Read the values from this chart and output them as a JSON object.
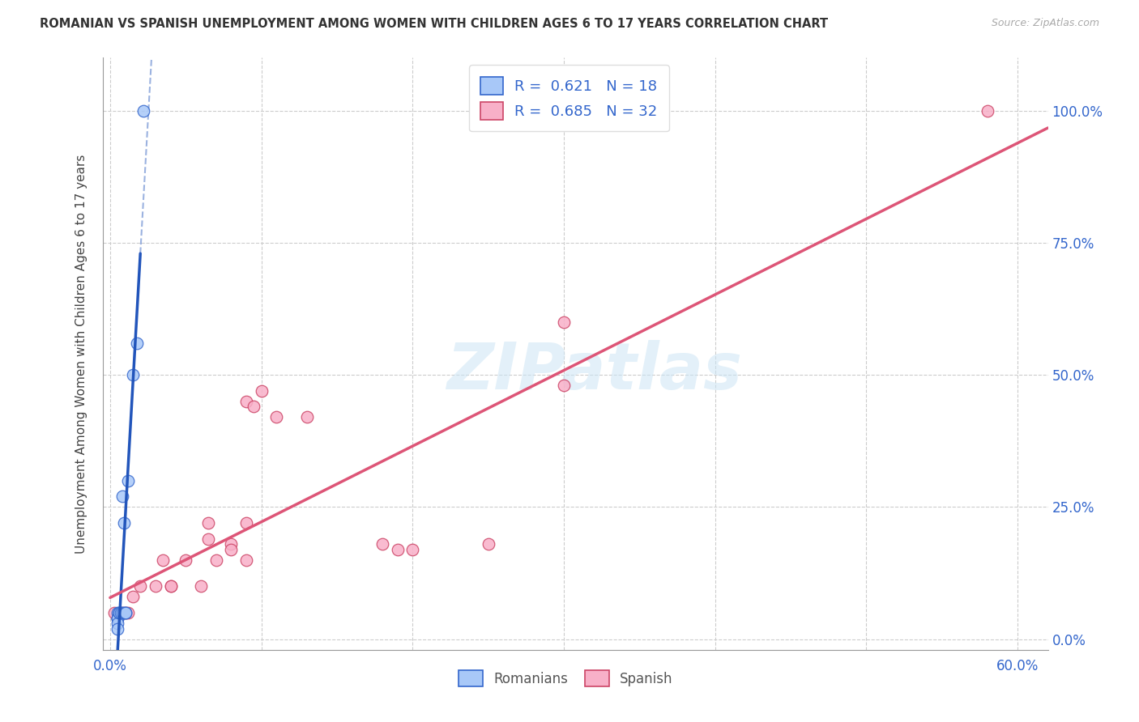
{
  "title": "ROMANIAN VS SPANISH UNEMPLOYMENT AMONG WOMEN WITH CHILDREN AGES 6 TO 17 YEARS CORRELATION CHART",
  "source": "Source: ZipAtlas.com",
  "ylabel_label": "Unemployment Among Women with Children Ages 6 to 17 years",
  "xlim": [
    -0.005,
    0.62
  ],
  "ylim": [
    -0.02,
    1.1
  ],
  "x_tick_vals": [
    0.0,
    0.1,
    0.2,
    0.3,
    0.4,
    0.5,
    0.6
  ],
  "y_tick_vals": [
    0.0,
    0.25,
    0.5,
    0.75,
    1.0
  ],
  "y_tick_labels": [
    "0.0%",
    "25.0%",
    "50.0%",
    "75.0%",
    "100.0%"
  ],
  "romanian_x": [
    0.005,
    0.005,
    0.005,
    0.005,
    0.005,
    0.006,
    0.006,
    0.007,
    0.008,
    0.008,
    0.009,
    0.009,
    0.01,
    0.01,
    0.012,
    0.015,
    0.018,
    0.022
  ],
  "romanian_y": [
    0.05,
    0.04,
    0.04,
    0.03,
    0.02,
    0.05,
    0.05,
    0.05,
    0.05,
    0.27,
    0.05,
    0.22,
    0.05,
    0.05,
    0.3,
    0.5,
    0.56,
    1.0
  ],
  "spanish_x": [
    0.003,
    0.005,
    0.008,
    0.01,
    0.012,
    0.015,
    0.02,
    0.03,
    0.035,
    0.04,
    0.04,
    0.05,
    0.06,
    0.065,
    0.065,
    0.07,
    0.08,
    0.08,
    0.09,
    0.09,
    0.09,
    0.095,
    0.1,
    0.11,
    0.13,
    0.18,
    0.19,
    0.2,
    0.25,
    0.3,
    0.3,
    0.58
  ],
  "spanish_y": [
    0.05,
    0.04,
    0.05,
    0.05,
    0.05,
    0.08,
    0.1,
    0.1,
    0.15,
    0.1,
    0.1,
    0.15,
    0.1,
    0.22,
    0.19,
    0.15,
    0.18,
    0.17,
    0.22,
    0.15,
    0.45,
    0.44,
    0.47,
    0.42,
    0.42,
    0.18,
    0.17,
    0.17,
    0.18,
    0.6,
    0.48,
    1.0
  ],
  "blue_fill": "#a8c8f8",
  "blue_edge": "#3366cc",
  "pink_fill": "#f8b0c8",
  "pink_edge": "#cc4466",
  "blue_line": "#2255bb",
  "pink_line": "#dd5577",
  "dot_size": 110,
  "watermark_text": "ZIPatlas",
  "R_romanian": 0.621,
  "N_romanian": 18,
  "R_spanish": 0.685,
  "N_spanish": 32,
  "legend_romanian": "Romanians",
  "legend_spanish": "Spanish"
}
